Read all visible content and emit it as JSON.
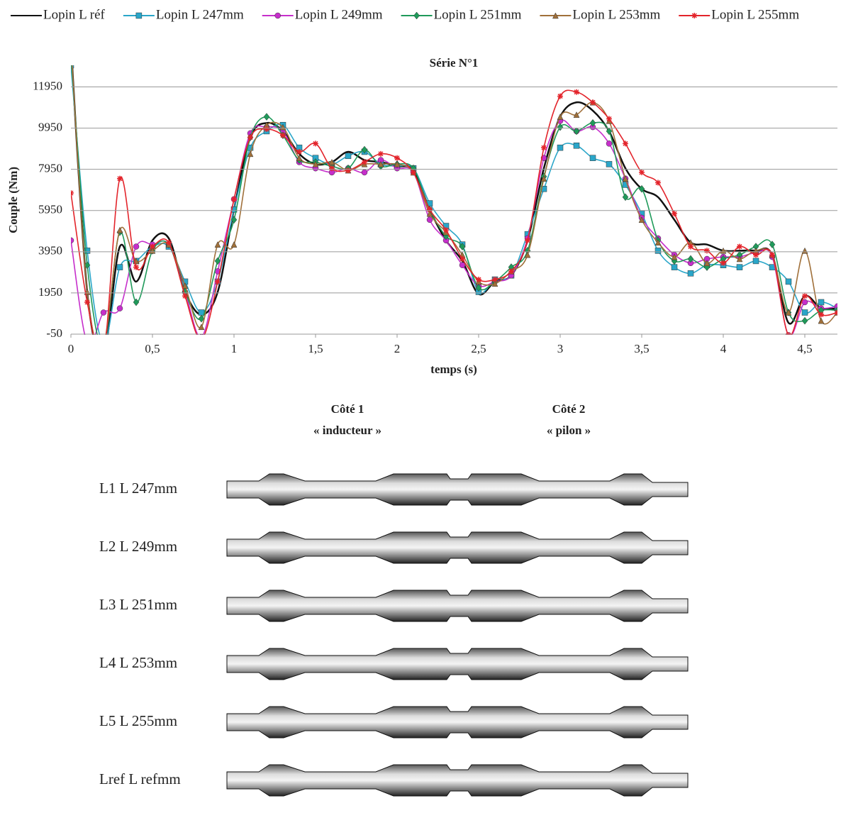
{
  "chart_data": {
    "type": "line",
    "title": "Série N°1",
    "x_label": "temps (s)",
    "y_label": "Couple (Nm)",
    "x": [
      0,
      0.1,
      0.2,
      0.3,
      0.4,
      0.5,
      0.6,
      0.7,
      0.8,
      0.9,
      1,
      1.1,
      1.2,
      1.3,
      1.4,
      1.5,
      1.6,
      1.7,
      1.8,
      1.9,
      2,
      2.1,
      2.2,
      2.3,
      2.4,
      2.5,
      2.6,
      2.7,
      2.8,
      2.9,
      3,
      3.1,
      3.2,
      3.3,
      3.4,
      3.5,
      3.6,
      3.7,
      3.8,
      3.9,
      4,
      4.1,
      4.2,
      4.3,
      4.4,
      4.5,
      4.6,
      4.7
    ],
    "xlim": [
      0,
      4.7
    ],
    "xticks": [
      0,
      {
        "value": 0.5,
        "label": "0,5"
      },
      1,
      {
        "value": 1.5,
        "label": "1,5"
      },
      2,
      {
        "value": 2.5,
        "label": "2,5"
      },
      3,
      {
        "value": 3.5,
        "label": "3,5"
      },
      4,
      {
        "value": 4.5,
        "label": "4,5"
      }
    ],
    "ylim": [
      -50,
      13000
    ],
    "yticks": [
      -50,
      1950,
      3950,
      5950,
      7950,
      9950,
      11950
    ],
    "grid": true,
    "legend": "top",
    "series": [
      {
        "name": "Lopin L réf",
        "color": "#111111",
        "marker": "none",
        "values": [
          14000,
          2000,
          -1000,
          4200,
          2500,
          4500,
          4600,
          2000,
          900,
          2000,
          6000,
          9500,
          10200,
          9800,
          8700,
          8200,
          8300,
          8800,
          8400,
          8300,
          8100,
          7900,
          6000,
          4500,
          3500,
          1900,
          2500,
          2800,
          4500,
          8000,
          10500,
          11200,
          10800,
          9800,
          8000,
          7000,
          6600,
          5500,
          4400,
          4300,
          4000,
          4000,
          4000,
          3800,
          500,
          1800,
          1200,
          1200
        ]
      },
      {
        "name": "Lopin L 247mm",
        "color": "#2aa6c9",
        "marker": "square",
        "values": [
          13000,
          4000,
          -500,
          3200,
          3500,
          4200,
          4200,
          2500,
          1000,
          2500,
          6000,
          9000,
          9800,
          10100,
          9000,
          8500,
          8200,
          8600,
          8800,
          8200,
          8100,
          8000,
          6300,
          5200,
          4300,
          2000,
          2600,
          2800,
          4800,
          7000,
          9000,
          9100,
          8500,
          8200,
          7200,
          5800,
          4000,
          3200,
          2900,
          3300,
          3300,
          3200,
          3500,
          3200,
          2500,
          1000,
          1500,
          1200
        ]
      },
      {
        "name": "Lopin L 249mm",
        "color": "#c62ecb",
        "marker": "circle",
        "values": [
          4500,
          -500,
          1000,
          1200,
          4200,
          4300,
          4300,
          2000,
          -200,
          3000,
          6500,
          9700,
          10000,
          9800,
          8300,
          8000,
          7800,
          8000,
          7800,
          8400,
          8000,
          7800,
          5500,
          4500,
          3300,
          2300,
          2500,
          2800,
          4600,
          8500,
          10300,
          9800,
          10000,
          9200,
          7500,
          5600,
          4600,
          3800,
          3400,
          3600,
          3700,
          3700,
          3900,
          3700,
          -100,
          1500,
          1200,
          1300
        ]
      },
      {
        "name": "Lopin L 251mm",
        "color": "#1f9a5a",
        "marker": "diamond",
        "values": [
          13500,
          3300,
          -600,
          4900,
          1500,
          4000,
          4300,
          2000,
          700,
          3500,
          5500,
          9500,
          10500,
          9600,
          8400,
          8300,
          8100,
          8000,
          8900,
          8100,
          8200,
          8000,
          6000,
          4700,
          4200,
          2200,
          2500,
          3200,
          4000,
          7600,
          10000,
          9800,
          10200,
          9800,
          6600,
          7000,
          4500,
          3500,
          3600,
          3200,
          3600,
          3800,
          4200,
          4300,
          1000,
          600,
          1100,
          1100
        ]
      },
      {
        "name": "Lopin L 253mm",
        "color": "#a0703a",
        "marker": "triangle",
        "values": [
          14000,
          2000,
          -500,
          5000,
          3500,
          4000,
          4300,
          2300,
          300,
          4300,
          4300,
          8700,
          10100,
          10000,
          8500,
          8200,
          8300,
          7900,
          8200,
          8200,
          8200,
          7800,
          5800,
          4900,
          3800,
          2500,
          2400,
          3000,
          3800,
          7500,
          10500,
          10600,
          11200,
          10300,
          7500,
          5500,
          4400,
          3700,
          4400,
          3400,
          4000,
          3600,
          4000,
          3800,
          1000,
          4000,
          600,
          1000
        ]
      },
      {
        "name": "Lopin L 255mm",
        "color": "#e3242b",
        "marker": "star",
        "values": [
          6800,
          1500,
          -1000,
          7500,
          3200,
          4200,
          4400,
          1800,
          -300,
          2500,
          6500,
          9500,
          9900,
          9600,
          8800,
          9200,
          8000,
          7900,
          8300,
          8700,
          8500,
          7800,
          6000,
          5000,
          3600,
          2600,
          2600,
          3000,
          4500,
          9000,
          11500,
          11700,
          11200,
          10400,
          9200,
          7800,
          7300,
          5800,
          4200,
          4000,
          3400,
          4200,
          3800,
          3800,
          -100,
          1800,
          900,
          1000
        ]
      }
    ]
  },
  "photo": {
    "side1": [
      "Côté 1",
      "« inducteur »"
    ],
    "side2": [
      "Côté 2",
      "« pilon »"
    ],
    "labels": [
      "L1 L 247mm",
      "L2 L 249mm",
      "L3 L 251mm",
      "L4 L 253mm",
      "L5 L 255mm",
      "Lref L refmm"
    ]
  }
}
